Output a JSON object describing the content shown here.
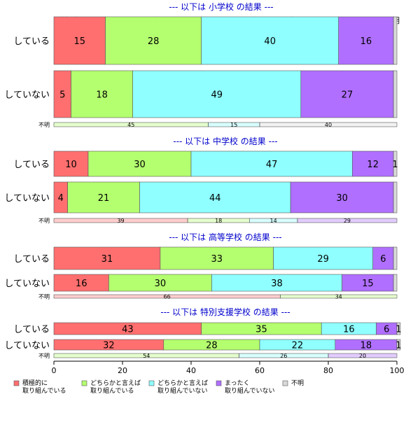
{
  "chart_data": {
    "type": "bar",
    "orientation": "horizontal",
    "stacked": "percent",
    "xlim": [
      0,
      100
    ],
    "x_ticks": [
      "0",
      "20",
      "40",
      "60",
      "80",
      "100"
    ],
    "column_headers": [
      "積極的に取..",
      "どちらかと言えば取り..",
      "どちらかと言えば取り組んでい..",
      "まったく取..",
      "不明"
    ],
    "legend": {
      "position": "bottom",
      "items": [
        {
          "label_lines": [
            "積極的に",
            "取り組んでいる"
          ],
          "color": "#FF6F6F"
        },
        {
          "label_lines": [
            "どちらかと言えば",
            "取り組んでいる"
          ],
          "color": "#B4FF6F"
        },
        {
          "label_lines": [
            "どちらかと言えば",
            "取り組んでいない"
          ],
          "color": "#8FFFFF"
        },
        {
          "label_lines": [
            "まったく",
            "取り組んでいない"
          ],
          "color": "#B06FFF"
        },
        {
          "label_lines": [
            "不明"
          ],
          "color": "#D9D9D9"
        }
      ]
    },
    "panels": [
      {
        "title": "--- 以下は 小学校 の結果 ---",
        "rows": [
          {
            "label": "している",
            "values": [
              15,
              28,
              40,
              16,
              1
            ],
            "labels": [
              "15",
              "28",
              "40",
              "16",
              ""
            ]
          },
          {
            "label": "していない",
            "values": [
              5,
              18,
              49,
              27,
              1
            ],
            "labels": [
              "5",
              "18",
              "49",
              "27",
              ""
            ]
          },
          {
            "label": "不明",
            "values": [
              0,
              45,
              15,
              0,
              40
            ],
            "labels": [
              "",
              "45",
              "15",
              "",
              "40"
            ]
          }
        ]
      },
      {
        "title": "--- 以下は 中学校 の結果 ---",
        "rows": [
          {
            "label": "している",
            "values": [
              10,
              30,
              47,
              12,
              1
            ],
            "labels": [
              "10",
              "30",
              "47",
              "12",
              "1"
            ]
          },
          {
            "label": "していない",
            "values": [
              4,
              21,
              44,
              30,
              1
            ],
            "labels": [
              "4",
              "21",
              "44",
              "30",
              ""
            ]
          },
          {
            "label": "不明",
            "values": [
              39,
              18,
              14,
              29,
              0
            ],
            "labels": [
              "39",
              "18",
              "14",
              "29",
              ""
            ]
          }
        ]
      },
      {
        "title": "--- 以下は 高等学校 の結果 ---",
        "rows": [
          {
            "label": "している",
            "values": [
              31,
              33,
              29,
              6,
              1
            ],
            "labels": [
              "31",
              "33",
              "29",
              "6",
              ""
            ]
          },
          {
            "label": "していない",
            "values": [
              16,
              30,
              38,
              15,
              1
            ],
            "labels": [
              "16",
              "30",
              "38",
              "15",
              ""
            ]
          },
          {
            "label": "不明",
            "values": [
              66,
              34,
              0,
              0,
              0
            ],
            "labels": [
              "66",
              "34",
              "",
              "",
              ""
            ]
          }
        ]
      },
      {
        "title": "--- 以下は 特別支援学校 の結果 ---",
        "rows": [
          {
            "label": "している",
            "values": [
              43,
              35,
              16,
              6,
              1
            ],
            "labels": [
              "43",
              "35",
              "16",
              "6",
              "1"
            ]
          },
          {
            "label": "していない",
            "values": [
              32,
              28,
              22,
              18,
              1
            ],
            "labels": [
              "32",
              "28",
              "22",
              "18",
              "1"
            ]
          },
          {
            "label": "不明",
            "values": [
              0,
              54,
              26,
              20,
              0
            ],
            "labels": [
              "",
              "54",
              "26",
              "20",
              ""
            ]
          }
        ]
      }
    ]
  }
}
